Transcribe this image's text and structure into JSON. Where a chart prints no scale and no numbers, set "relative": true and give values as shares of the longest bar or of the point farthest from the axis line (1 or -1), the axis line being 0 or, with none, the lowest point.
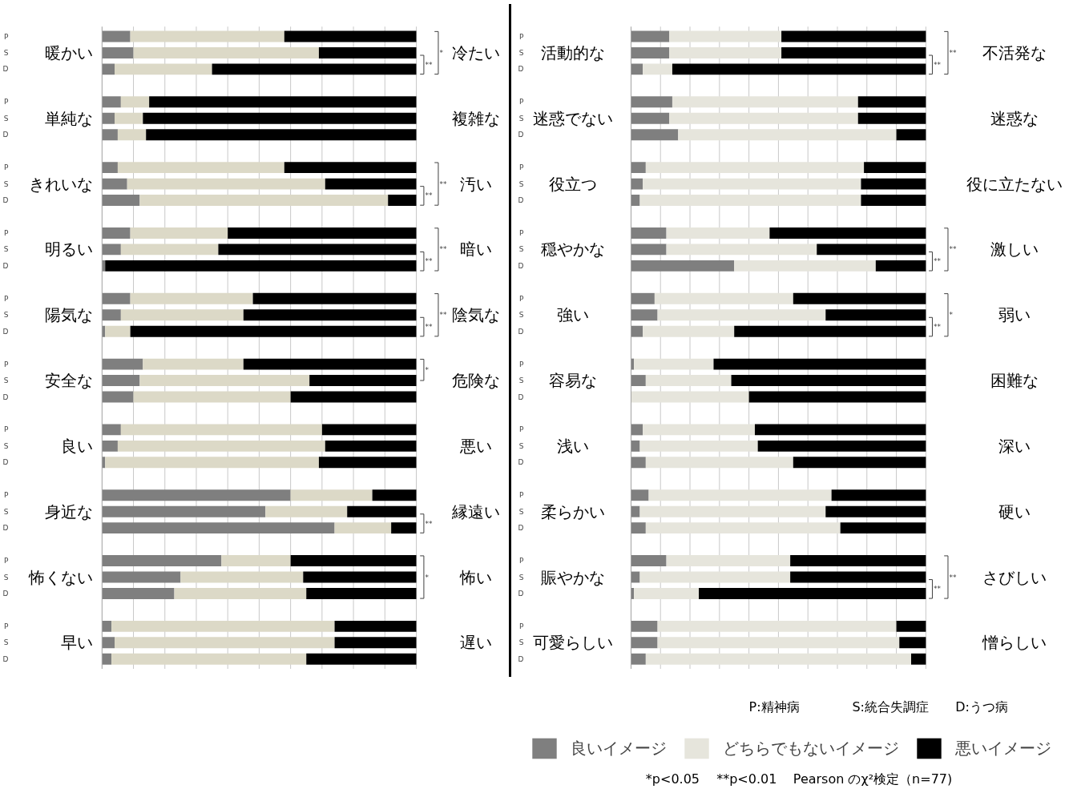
{
  "chart_data": [
    {
      "type": "bar",
      "orientation": "horizontal",
      "stacked": true,
      "relative": true,
      "grid": "x",
      "tick_labels": "y",
      "categories": [
        "P",
        "S",
        "D",
        "P",
        "S",
        "D",
        "P",
        "S",
        "D",
        "P",
        "S",
        "D",
        "P",
        "S",
        "D",
        "P",
        "S",
        "D",
        "P",
        "S",
        "D",
        "P",
        "S",
        "D",
        "P",
        "S",
        "D",
        "P",
        "S",
        "D"
      ],
      "series": [
        {
          "color": "#7f7f7f",
          "values": [
            0.09,
            0.1,
            0.04,
            0.06,
            0.04,
            0.05,
            0.05,
            0.08,
            0.12,
            0.09,
            0.06,
            0.01,
            0.09,
            0.06,
            0.01,
            0.13,
            0.12,
            0.1,
            0.06,
            0.05,
            0.01,
            0.6,
            0.52,
            0.74,
            0.38,
            0.25,
            0.23,
            0.03,
            0.04,
            0.03
          ]
        },
        {
          "color": "#dcd9c7",
          "values": [
            0.49,
            0.59,
            0.31,
            0.09,
            0.09,
            0.09,
            0.53,
            0.63,
            0.79,
            0.31,
            0.31,
            0.0,
            0.39,
            0.39,
            0.08,
            0.32,
            0.54,
            0.5,
            0.64,
            0.66,
            0.68,
            0.26,
            0.26,
            0.18,
            0.22,
            0.39,
            0.42,
            0.71,
            0.7,
            0.62
          ]
        },
        {
          "color": "#000000",
          "values": [
            0.42,
            0.31,
            0.65,
            0.85,
            0.87,
            0.86,
            0.42,
            0.29,
            0.09,
            0.6,
            0.63,
            0.99,
            0.52,
            0.55,
            0.91,
            0.55,
            0.34,
            0.4,
            0.3,
            0.29,
            0.31,
            0.14,
            0.22,
            0.08,
            0.4,
            0.36,
            0.35,
            0.26,
            0.26,
            0.35
          ]
        }
      ],
      "annotations": [
        "暖かい",
        "冷たい",
        "単純な",
        "複雑な",
        "きれいな",
        "汚い",
        "明るい",
        "暗い",
        "陽気な",
        "陰気な",
        "安全な",
        "危険な",
        "良い",
        "悪い",
        "身近な",
        "縁遠い",
        "怖くない",
        "怖い",
        "早い",
        "遅い",
        "*",
        "**",
        "**",
        "**",
        "**",
        "**",
        "**",
        "**",
        "*",
        "**",
        "*"
      ]
    },
    {
      "type": "bar",
      "orientation": "horizontal",
      "stacked": true,
      "relative": true,
      "grid": "x",
      "tick_labels": "y",
      "legend": "bottom",
      "categories": [
        "P",
        "S",
        "D",
        "P",
        "S",
        "D",
        "P",
        "S",
        "D",
        "P",
        "S",
        "D",
        "P",
        "S",
        "D",
        "P",
        "S",
        "D",
        "P",
        "S",
        "D",
        "P",
        "S",
        "D",
        "P",
        "S",
        "D",
        "P",
        "S",
        "D"
      ],
      "series": [
        {
          "name": "良いイメージ",
          "color": "#7f7f7f",
          "values": [
            0.13,
            0.13,
            0.04,
            0.14,
            0.13,
            0.16,
            0.05,
            0.04,
            0.03,
            0.12,
            0.12,
            0.35,
            0.08,
            0.09,
            0.04,
            0.01,
            0.05,
            0.0,
            0.04,
            0.03,
            0.05,
            0.06,
            0.03,
            0.05,
            0.12,
            0.03,
            0.01,
            0.09,
            0.09,
            0.05
          ]
        },
        {
          "name": "どちらでもないイメージ",
          "color": "#e6e5dc",
          "values": [
            0.38,
            0.38,
            0.1,
            0.63,
            0.64,
            0.74,
            0.74,
            0.74,
            0.75,
            0.35,
            0.51,
            0.48,
            0.47,
            0.57,
            0.31,
            0.27,
            0.29,
            0.4,
            0.38,
            0.4,
            0.5,
            0.62,
            0.63,
            0.66,
            0.42,
            0.51,
            0.22,
            0.81,
            0.82,
            0.9
          ]
        },
        {
          "name": "悪いイメージ",
          "color": "#000000",
          "values": [
            0.49,
            0.49,
            0.86,
            0.23,
            0.23,
            0.1,
            0.21,
            0.22,
            0.22,
            0.53,
            0.37,
            0.17,
            0.45,
            0.34,
            0.65,
            0.72,
            0.66,
            0.6,
            0.58,
            0.57,
            0.45,
            0.32,
            0.34,
            0.29,
            0.46,
            0.46,
            0.77,
            0.1,
            0.09,
            0.05
          ]
        }
      ],
      "annotations": [
        "活動的な",
        "不活発な",
        "迷惑でない",
        "迷惑な",
        "役立つ",
        "役に立たない",
        "穏やかな",
        "激しい",
        "強い",
        "弱い",
        "容易な",
        "困難な",
        "浅い",
        "深い",
        "柔らかい",
        "硬い",
        "賑やかな",
        "さびしい",
        "可愛らしい",
        "憎らしい",
        "**",
        "**",
        "**",
        "**",
        "*",
        "**",
        "**",
        "**",
        "P:精神病",
        "S:統合失調症",
        "D:うつ病",
        "*p<0.05",
        "**p<0.01",
        "Pearson のχ²検定（n=77)"
      ]
    }
  ]
}
